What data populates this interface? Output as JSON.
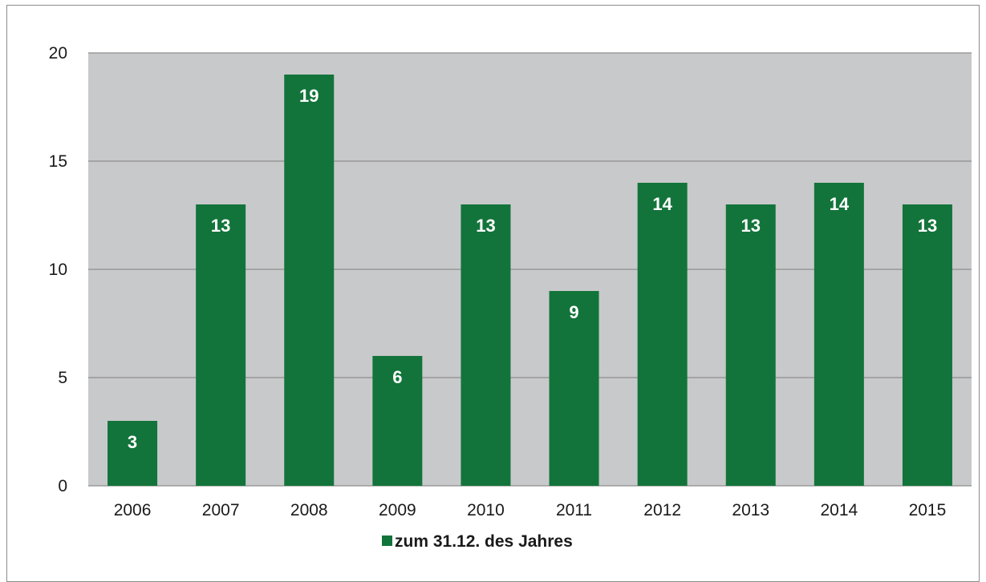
{
  "chart_data": {
    "type": "bar",
    "categories": [
      "2006",
      "2007",
      "2008",
      "2009",
      "2010",
      "2011",
      "2012",
      "2013",
      "2014",
      "2015"
    ],
    "series": [
      {
        "name": "zum 31.12. des Jahres",
        "values": [
          3,
          13,
          19,
          6,
          13,
          9,
          14,
          13,
          14,
          13
        ]
      }
    ],
    "title": "",
    "xlabel": "",
    "ylabel": "",
    "ylim": [
      0,
      20
    ],
    "yticks": [
      "0",
      "5",
      "10",
      "15",
      "20"
    ],
    "grid": true,
    "legend": "bottom-center",
    "colors": {
      "bar": "#12743a",
      "plot_bg": "#c8c9cb",
      "grid": "#8e8e8e",
      "label": "#ffffff"
    }
  }
}
